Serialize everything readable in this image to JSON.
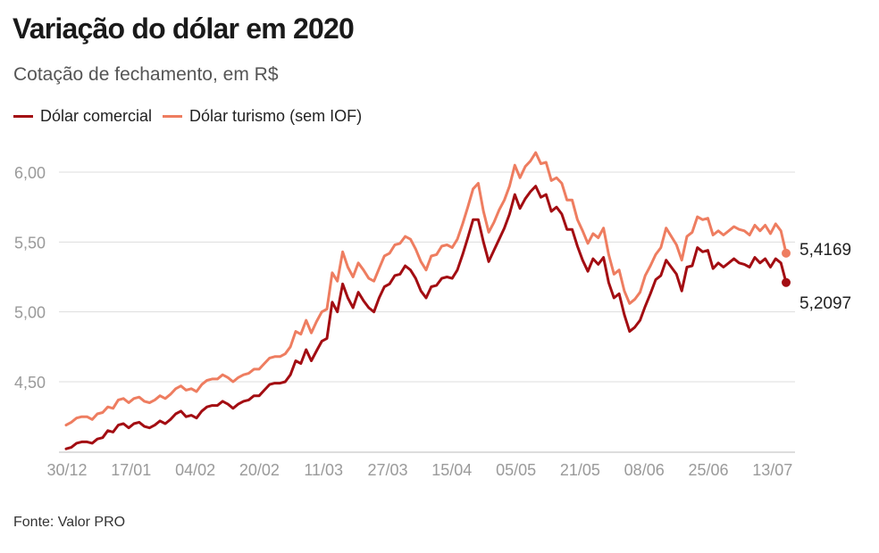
{
  "header": {
    "title": "Variação do dólar em 2020",
    "subtitle": "Cotação de fechamento, em R$"
  },
  "footer": {
    "source": "Fonte: Valor PRO"
  },
  "colors": {
    "comercial": "#a30d12",
    "turismo": "#ee7d60",
    "grid": "#dddddd",
    "axis": "#bbbbbb"
  },
  "chart_data": {
    "type": "line",
    "title": "Variação do dólar em 2020",
    "subtitle": "Cotação de fechamento, em R$",
    "xlabel": "",
    "ylabel": "",
    "ylim": [
      4.0,
      6.25
    ],
    "yticks": [
      4.5,
      5.0,
      5.5,
      6.0
    ],
    "ytick_labels": [
      "4,50",
      "5,00",
      "5,50",
      "6,00"
    ],
    "xtick_labels": [
      "30/12",
      "17/01",
      "04/02",
      "20/02",
      "11/03",
      "27/03",
      "15/04",
      "05/05",
      "21/05",
      "08/06",
      "25/06",
      "13/07"
    ],
    "grid": true,
    "legend_position": "top-left",
    "series": [
      {
        "name": "Dólar comercial",
        "color": "#a30d12",
        "end_label": "5,2097",
        "values": [
          4.02,
          4.03,
          4.06,
          4.07,
          4.07,
          4.06,
          4.09,
          4.1,
          4.15,
          4.14,
          4.19,
          4.2,
          4.17,
          4.2,
          4.21,
          4.18,
          4.17,
          4.19,
          4.22,
          4.2,
          4.23,
          4.27,
          4.29,
          4.25,
          4.26,
          4.24,
          4.29,
          4.32,
          4.33,
          4.33,
          4.36,
          4.34,
          4.31,
          4.34,
          4.36,
          4.37,
          4.4,
          4.4,
          4.44,
          4.48,
          4.49,
          4.49,
          4.5,
          4.55,
          4.65,
          4.63,
          4.73,
          4.65,
          4.72,
          4.79,
          4.81,
          5.07,
          5.0,
          5.2,
          5.1,
          5.03,
          5.14,
          5.08,
          5.03,
          5.0,
          5.1,
          5.18,
          5.2,
          5.26,
          5.27,
          5.33,
          5.3,
          5.24,
          5.15,
          5.1,
          5.18,
          5.19,
          5.24,
          5.25,
          5.24,
          5.3,
          5.41,
          5.53,
          5.66,
          5.66,
          5.5,
          5.36,
          5.44,
          5.52,
          5.6,
          5.7,
          5.84,
          5.74,
          5.81,
          5.86,
          5.9,
          5.82,
          5.84,
          5.72,
          5.75,
          5.7,
          5.59,
          5.59,
          5.47,
          5.37,
          5.29,
          5.38,
          5.34,
          5.39,
          5.21,
          5.1,
          5.13,
          4.98,
          4.86,
          4.89,
          4.94,
          5.04,
          5.13,
          5.23,
          5.26,
          5.37,
          5.32,
          5.27,
          5.15,
          5.32,
          5.33,
          5.46,
          5.43,
          5.44,
          5.31,
          5.35,
          5.32,
          5.35,
          5.38,
          5.35,
          5.34,
          5.32,
          5.39,
          5.35,
          5.38,
          5.32,
          5.38,
          5.35,
          5.21
        ]
      },
      {
        "name": "Dólar turismo (sem IOF)",
        "color": "#ee7d60",
        "end_label": "5,4169",
        "values": [
          4.19,
          4.21,
          4.24,
          4.25,
          4.25,
          4.23,
          4.27,
          4.28,
          4.32,
          4.31,
          4.37,
          4.38,
          4.35,
          4.38,
          4.39,
          4.36,
          4.35,
          4.37,
          4.4,
          4.38,
          4.41,
          4.45,
          4.47,
          4.44,
          4.45,
          4.43,
          4.48,
          4.51,
          4.52,
          4.52,
          4.55,
          4.53,
          4.5,
          4.53,
          4.55,
          4.56,
          4.59,
          4.59,
          4.63,
          4.67,
          4.68,
          4.68,
          4.7,
          4.75,
          4.86,
          4.84,
          4.94,
          4.85,
          4.93,
          5.0,
          5.02,
          5.28,
          5.22,
          5.43,
          5.32,
          5.25,
          5.35,
          5.3,
          5.24,
          5.22,
          5.31,
          5.4,
          5.42,
          5.48,
          5.49,
          5.54,
          5.52,
          5.45,
          5.36,
          5.3,
          5.4,
          5.41,
          5.47,
          5.48,
          5.46,
          5.52,
          5.63,
          5.75,
          5.88,
          5.92,
          5.72,
          5.57,
          5.64,
          5.73,
          5.8,
          5.9,
          6.05,
          5.96,
          6.04,
          6.08,
          6.14,
          6.06,
          6.07,
          5.94,
          5.96,
          5.92,
          5.8,
          5.8,
          5.66,
          5.58,
          5.49,
          5.56,
          5.53,
          5.6,
          5.41,
          5.27,
          5.3,
          5.15,
          5.06,
          5.09,
          5.14,
          5.26,
          5.33,
          5.41,
          5.46,
          5.6,
          5.54,
          5.48,
          5.37,
          5.54,
          5.57,
          5.68,
          5.66,
          5.67,
          5.55,
          5.58,
          5.55,
          5.58,
          5.61,
          5.59,
          5.58,
          5.55,
          5.62,
          5.58,
          5.62,
          5.56,
          5.63,
          5.58,
          5.42
        ]
      }
    ]
  }
}
